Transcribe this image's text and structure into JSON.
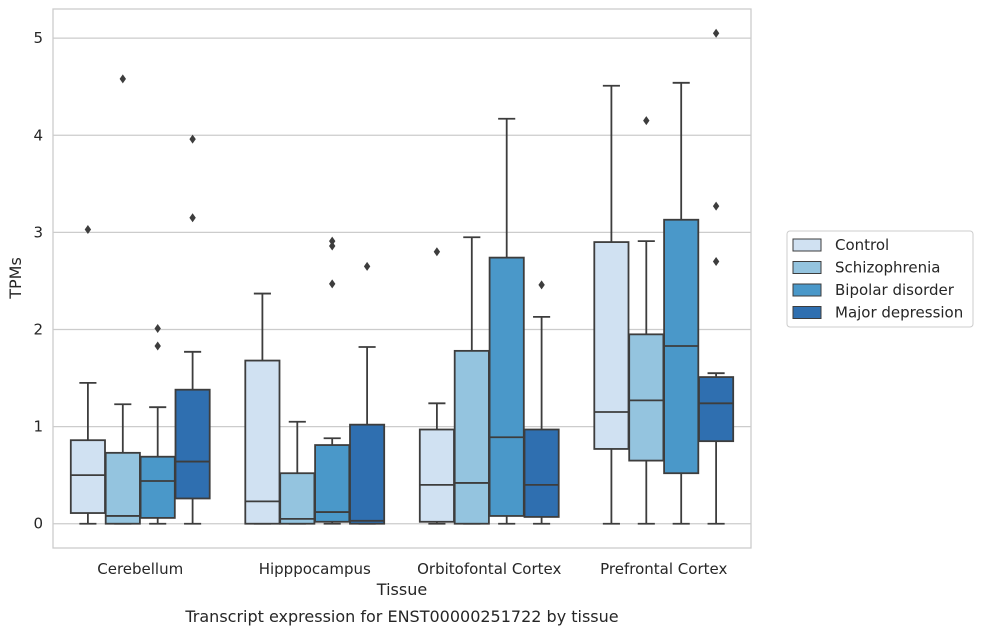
{
  "chart_data": {
    "type": "box",
    "xlabel": "Tissue",
    "ylabel": "TPMs",
    "caption": "Transcript expression for ENST00000251722 by tissue",
    "ylim": [
      -0.25,
      5.3
    ],
    "yticks": [
      0,
      1,
      2,
      3,
      4,
      5
    ],
    "grid": true,
    "legend_position": "right",
    "categories": [
      "Cerebellum",
      "Hipppocampus",
      "Orbitofontal Cortex",
      "Prefrontal Cortex"
    ],
    "series": [
      {
        "name": "Control",
        "color": "#d0e1f2",
        "boxes": [
          {
            "whislo": 0.0,
            "q1": 0.11,
            "med": 0.5,
            "q3": 0.86,
            "whishi": 1.45,
            "fliers": [
              3.03
            ]
          },
          {
            "whislo": 0.0,
            "q1": 0.0,
            "med": 0.23,
            "q3": 1.68,
            "whishi": 2.37,
            "fliers": []
          },
          {
            "whislo": 0.0,
            "q1": 0.02,
            "med": 0.4,
            "q3": 0.97,
            "whishi": 1.24,
            "fliers": [
              2.8
            ]
          },
          {
            "whislo": 0.0,
            "q1": 0.77,
            "med": 1.15,
            "q3": 2.9,
            "whishi": 4.51,
            "fliers": []
          }
        ]
      },
      {
        "name": "Schizophrenia",
        "color": "#94c4df",
        "boxes": [
          {
            "whislo": 0.0,
            "q1": 0.0,
            "med": 0.08,
            "q3": 0.73,
            "whishi": 1.23,
            "fliers": [
              4.58
            ]
          },
          {
            "whislo": 0.0,
            "q1": 0.0,
            "med": 0.05,
            "q3": 0.52,
            "whishi": 1.05,
            "fliers": []
          },
          {
            "whislo": 0.0,
            "q1": 0.0,
            "med": 0.42,
            "q3": 1.78,
            "whishi": 2.95,
            "fliers": []
          },
          {
            "whislo": 0.0,
            "q1": 0.65,
            "med": 1.27,
            "q3": 1.95,
            "whishi": 2.91,
            "fliers": [
              4.15
            ]
          }
        ]
      },
      {
        "name": "Bipolar disorder",
        "color": "#4a98c9",
        "boxes": [
          {
            "whislo": 0.0,
            "q1": 0.06,
            "med": 0.44,
            "q3": 0.69,
            "whishi": 1.2,
            "fliers": [
              2.01,
              1.83
            ]
          },
          {
            "whislo": 0.0,
            "q1": 0.02,
            "med": 0.12,
            "q3": 0.81,
            "whishi": 0.88,
            "fliers": [
              2.91,
              2.86,
              2.47
            ]
          },
          {
            "whislo": 0.0,
            "q1": 0.08,
            "med": 0.89,
            "q3": 2.74,
            "whishi": 4.17,
            "fliers": []
          },
          {
            "whislo": 0.0,
            "q1": 0.52,
            "med": 1.83,
            "q3": 3.13,
            "whishi": 4.54,
            "fliers": []
          }
        ]
      },
      {
        "name": "Major depression",
        "color": "#2f6fb0",
        "boxes": [
          {
            "whislo": 0.0,
            "q1": 0.26,
            "med": 0.64,
            "q3": 1.38,
            "whishi": 1.77,
            "fliers": [
              3.96,
              3.15
            ]
          },
          {
            "whislo": 0.0,
            "q1": 0.0,
            "med": 0.03,
            "q3": 1.02,
            "whishi": 1.82,
            "fliers": [
              2.65
            ]
          },
          {
            "whislo": 0.0,
            "q1": 0.07,
            "med": 0.4,
            "q3": 0.97,
            "whishi": 2.13,
            "fliers": [
              2.46
            ]
          },
          {
            "whislo": 0.0,
            "q1": 0.85,
            "med": 1.24,
            "q3": 1.51,
            "whishi": 1.55,
            "fliers": [
              5.05,
              3.27,
              2.7
            ]
          }
        ]
      }
    ]
  }
}
